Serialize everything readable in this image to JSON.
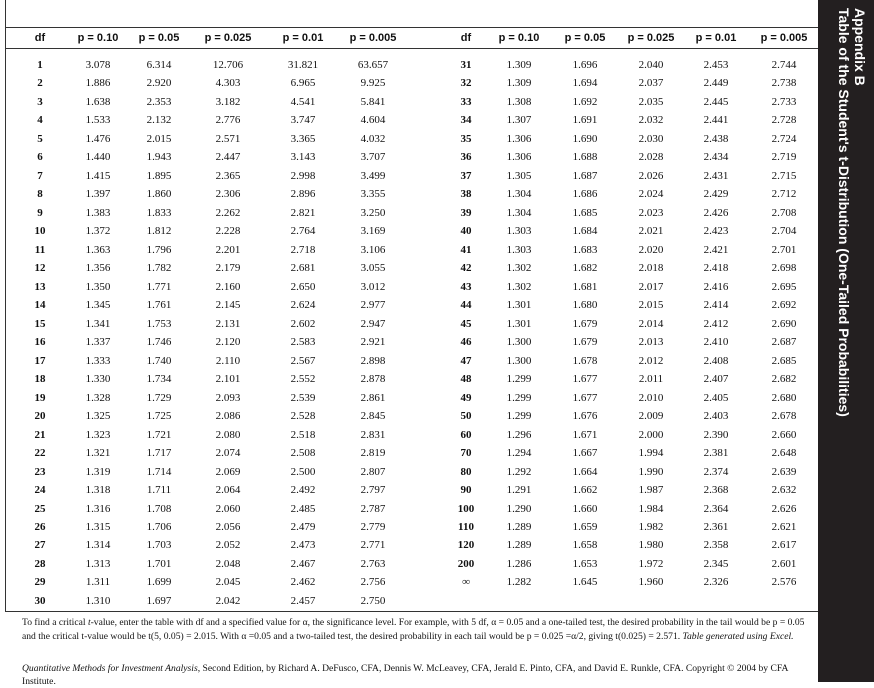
{
  "sidebar": {
    "appendix": "Appendix B",
    "title": "Table of the Student's t-Distribution (One-Tailed Probabilities)"
  },
  "table": {
    "headers": [
      "df",
      "p = 0.10",
      "p = 0.05",
      "p = 0.025",
      "p = 0.01",
      "p = 0.005"
    ],
    "left_rows": [
      [
        "1",
        "3.078",
        "6.314",
        "12.706",
        "31.821",
        "63.657"
      ],
      [
        "2",
        "1.886",
        "2.920",
        "4.303",
        "6.965",
        "9.925"
      ],
      [
        "3",
        "1.638",
        "2.353",
        "3.182",
        "4.541",
        "5.841"
      ],
      [
        "4",
        "1.533",
        "2.132",
        "2.776",
        "3.747",
        "4.604"
      ],
      [
        "5",
        "1.476",
        "2.015",
        "2.571",
        "3.365",
        "4.032"
      ],
      [
        "6",
        "1.440",
        "1.943",
        "2.447",
        "3.143",
        "3.707"
      ],
      [
        "7",
        "1.415",
        "1.895",
        "2.365",
        "2.998",
        "3.499"
      ],
      [
        "8",
        "1.397",
        "1.860",
        "2.306",
        "2.896",
        "3.355"
      ],
      [
        "9",
        "1.383",
        "1.833",
        "2.262",
        "2.821",
        "3.250"
      ],
      [
        "10",
        "1.372",
        "1.812",
        "2.228",
        "2.764",
        "3.169"
      ],
      [
        "11",
        "1.363",
        "1.796",
        "2.201",
        "2.718",
        "3.106"
      ],
      [
        "12",
        "1.356",
        "1.782",
        "2.179",
        "2.681",
        "3.055"
      ],
      [
        "13",
        "1.350",
        "1.771",
        "2.160",
        "2.650",
        "3.012"
      ],
      [
        "14",
        "1.345",
        "1.761",
        "2.145",
        "2.624",
        "2.977"
      ],
      [
        "15",
        "1.341",
        "1.753",
        "2.131",
        "2.602",
        "2.947"
      ],
      [
        "16",
        "1.337",
        "1.746",
        "2.120",
        "2.583",
        "2.921"
      ],
      [
        "17",
        "1.333",
        "1.740",
        "2.110",
        "2.567",
        "2.898"
      ],
      [
        "18",
        "1.330",
        "1.734",
        "2.101",
        "2.552",
        "2.878"
      ],
      [
        "19",
        "1.328",
        "1.729",
        "2.093",
        "2.539",
        "2.861"
      ],
      [
        "20",
        "1.325",
        "1.725",
        "2.086",
        "2.528",
        "2.845"
      ],
      [
        "21",
        "1.323",
        "1.721",
        "2.080",
        "2.518",
        "2.831"
      ],
      [
        "22",
        "1.321",
        "1.717",
        "2.074",
        "2.508",
        "2.819"
      ],
      [
        "23",
        "1.319",
        "1.714",
        "2.069",
        "2.500",
        "2.807"
      ],
      [
        "24",
        "1.318",
        "1.711",
        "2.064",
        "2.492",
        "2.797"
      ],
      [
        "25",
        "1.316",
        "1.708",
        "2.060",
        "2.485",
        "2.787"
      ],
      [
        "26",
        "1.315",
        "1.706",
        "2.056",
        "2.479",
        "2.779"
      ],
      [
        "27",
        "1.314",
        "1.703",
        "2.052",
        "2.473",
        "2.771"
      ],
      [
        "28",
        "1.313",
        "1.701",
        "2.048",
        "2.467",
        "2.763"
      ],
      [
        "29",
        "1.311",
        "1.699",
        "2.045",
        "2.462",
        "2.756"
      ],
      [
        "30",
        "1.310",
        "1.697",
        "2.042",
        "2.457",
        "2.750"
      ]
    ],
    "right_rows": [
      [
        "31",
        "1.309",
        "1.696",
        "2.040",
        "2.453",
        "2.744"
      ],
      [
        "32",
        "1.309",
        "1.694",
        "2.037",
        "2.449",
        "2.738"
      ],
      [
        "33",
        "1.308",
        "1.692",
        "2.035",
        "2.445",
        "2.733"
      ],
      [
        "34",
        "1.307",
        "1.691",
        "2.032",
        "2.441",
        "2.728"
      ],
      [
        "35",
        "1.306",
        "1.690",
        "2.030",
        "2.438",
        "2.724"
      ],
      [
        "36",
        "1.306",
        "1.688",
        "2.028",
        "2.434",
        "2.719"
      ],
      [
        "37",
        "1.305",
        "1.687",
        "2.026",
        "2.431",
        "2.715"
      ],
      [
        "38",
        "1.304",
        "1.686",
        "2.024",
        "2.429",
        "2.712"
      ],
      [
        "39",
        "1.304",
        "1.685",
        "2.023",
        "2.426",
        "2.708"
      ],
      [
        "40",
        "1.303",
        "1.684",
        "2.021",
        "2.423",
        "2.704"
      ],
      [
        "41",
        "1.303",
        "1.683",
        "2.020",
        "2.421",
        "2.701"
      ],
      [
        "42",
        "1.302",
        "1.682",
        "2.018",
        "2.418",
        "2.698"
      ],
      [
        "43",
        "1.302",
        "1.681",
        "2.017",
        "2.416",
        "2.695"
      ],
      [
        "44",
        "1.301",
        "1.680",
        "2.015",
        "2.414",
        "2.692"
      ],
      [
        "45",
        "1.301",
        "1.679",
        "2.014",
        "2.412",
        "2.690"
      ],
      [
        "46",
        "1.300",
        "1.679",
        "2.013",
        "2.410",
        "2.687"
      ],
      [
        "47",
        "1.300",
        "1.678",
        "2.012",
        "2.408",
        "2.685"
      ],
      [
        "48",
        "1.299",
        "1.677",
        "2.011",
        "2.407",
        "2.682"
      ],
      [
        "49",
        "1.299",
        "1.677",
        "2.010",
        "2.405",
        "2.680"
      ],
      [
        "50",
        "1.299",
        "1.676",
        "2.009",
        "2.403",
        "2.678"
      ],
      [
        "60",
        "1.296",
        "1.671",
        "2.000",
        "2.390",
        "2.660"
      ],
      [
        "70",
        "1.294",
        "1.667",
        "1.994",
        "2.381",
        "2.648"
      ],
      [
        "80",
        "1.292",
        "1.664",
        "1.990",
        "2.374",
        "2.639"
      ],
      [
        "90",
        "1.291",
        "1.662",
        "1.987",
        "2.368",
        "2.632"
      ],
      [
        "100",
        "1.290",
        "1.660",
        "1.984",
        "2.364",
        "2.626"
      ],
      [
        "110",
        "1.289",
        "1.659",
        "1.982",
        "2.361",
        "2.621"
      ],
      [
        "120",
        "1.289",
        "1.658",
        "1.980",
        "2.358",
        "2.617"
      ],
      [
        "200",
        "1.286",
        "1.653",
        "1.972",
        "2.345",
        "2.601"
      ],
      [
        "∞",
        "1.282",
        "1.645",
        "1.960",
        "2.326",
        "2.576"
      ]
    ]
  },
  "footer": {
    "note_p1": "To find a critical ",
    "note_t": "t",
    "note_p2": "-value, enter the table with df and a specified value for α, the significance level. For example, with 5 df, α = 0.05 and a one-tailed test, the desired probability in the tail would be p = 0.05 and the critical t-value would be t(5, 0.05) = 2.015. With α =0.05 and a two-tailed test, the desired probability in each tail would be p = 0.025 =α/2, giving t(0.025) = 2.571. ",
    "note_italic": "Table generated using Excel.",
    "cite_title": "Quantitative Methods for Investment Analysis",
    "cite_rest": ", Second Edition, by Richard A. DeFusco, CFA, Dennis W. McLeavey, CFA, Jerald E. Pinto, CFA, and David E. Runkle, CFA. Copyright © 2004 by CFA Institute."
  },
  "colors": {
    "sidebar": "#231f20",
    "sidebar_text": "#ffffff"
  }
}
